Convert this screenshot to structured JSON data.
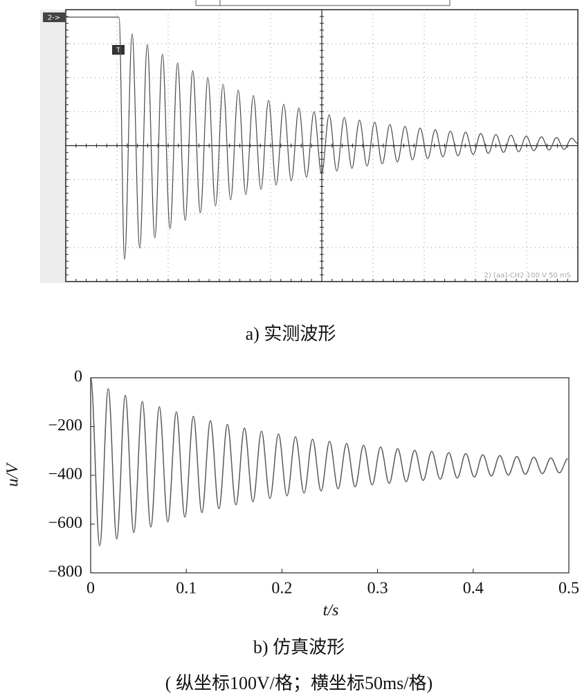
{
  "chart_data": [
    {
      "type": "line",
      "caption": "a) 实测波形",
      "channel_marker": "2->",
      "trigger_marker": "T",
      "status": "2) [aa]-CH2  100  V  50 mS",
      "xlim": [
        0,
        500
      ],
      "ylim": [
        -780,
        22
      ],
      "grid": true,
      "color": "#4a4a4a",
      "x": [
        0,
        52,
        57.4,
        64.8,
        72.2,
        79.6,
        87,
        94.4,
        101.8,
        109.2,
        116.6,
        124,
        131.4,
        138.8,
        146.2,
        153.6,
        161,
        168.4,
        175.8,
        183.2,
        190.6,
        198,
        205.4,
        212.8,
        220.2,
        227.6,
        235,
        242.4,
        249.8,
        257.2,
        264.6,
        272,
        279.4,
        286.8,
        294.2,
        301.6,
        309,
        316.4,
        323.8,
        331.2,
        338.6,
        346,
        353.4,
        360.8,
        368.2,
        375.6,
        383,
        390.4,
        397.8,
        405.2,
        412.6,
        420,
        427.4,
        434.8,
        442.2,
        449.6,
        457,
        464.4,
        471.8,
        479.2,
        486.6,
        494,
        500
      ],
      "values": [
        0,
        0,
        -714,
        -49,
        -681,
        -81,
        -651,
        -109,
        -624,
        -135,
        -599,
        -158,
        -577,
        -179,
        -557,
        -198,
        -539,
        -215,
        -523,
        -231,
        -508,
        -245,
        -495,
        -257,
        -483,
        -268,
        -472,
        -279,
        -463,
        -288,
        -454,
        -296,
        -446,
        -304,
        -439,
        -310,
        -433,
        -317,
        -427,
        -322,
        -421,
        -327,
        -417,
        -332,
        -412,
        -336,
        -409,
        -339,
        -405,
        -343,
        -402,
        -346,
        -399,
        -348,
        -397,
        -351,
        -394,
        -353,
        -392,
        -355,
        -390,
        -357,
        -373
      ]
    },
    {
      "type": "line",
      "caption": "b) 仿真波形",
      "note": "( 纵坐标100V/格；横坐标50ms/格)",
      "xlabel": "t/s",
      "ylabel": "u/V",
      "xlim": [
        0,
        0.5
      ],
      "ylim": [
        -800,
        0
      ],
      "grid": false,
      "color": "#5a5a5a",
      "xticks": [
        0,
        0.1,
        0.2,
        0.3,
        0.4,
        0.5
      ],
      "yticks": [
        {
          "value": 0,
          "label": "0"
        },
        {
          "value": -200,
          "label": "−200"
        },
        {
          "value": -400,
          "label": "−400"
        },
        {
          "value": -600,
          "label": "−600"
        },
        {
          "value": -800,
          "label": "−800"
        }
      ],
      "x": [
        0,
        0.0095,
        0.0184,
        0.0273,
        0.0362,
        0.0451,
        0.054,
        0.0629,
        0.0718,
        0.0807,
        0.0896,
        0.0985,
        0.1074,
        0.1163,
        0.1252,
        0.1341,
        0.143,
        0.1519,
        0.1608,
        0.1697,
        0.1786,
        0.1875,
        0.1964,
        0.2053,
        0.2142,
        0.2231,
        0.232,
        0.2409,
        0.2498,
        0.2587,
        0.2676,
        0.2765,
        0.2854,
        0.2943,
        0.3032,
        0.3121,
        0.321,
        0.3299,
        0.3388,
        0.3477,
        0.3566,
        0.3655,
        0.3744,
        0.3833,
        0.3922,
        0.4011,
        0.41,
        0.4189,
        0.4278,
        0.4367,
        0.4456,
        0.4545,
        0.4634,
        0.4723,
        0.4812,
        0.4901,
        0.499
      ],
      "values": [
        0,
        -689,
        -45,
        -661,
        -72,
        -635,
        -97,
        -612,
        -119,
        -591,
        -140,
        -571,
        -158,
        -553,
        -176,
        -537,
        -191,
        -521,
        -206,
        -508,
        -219,
        -495,
        -231,
        -484,
        -242,
        -473,
        -252,
        -464,
        -261,
        -455,
        -270,
        -447,
        -277,
        -439,
        -284,
        -433,
        -291,
        -426,
        -297,
        -421,
        -302,
        -416,
        -307,
        -411,
        -311,
        -407,
        -316,
        -403,
        -319,
        -399,
        -323,
        -396,
        -326,
        -393,
        -329,
        -390,
        -332
      ]
    }
  ]
}
